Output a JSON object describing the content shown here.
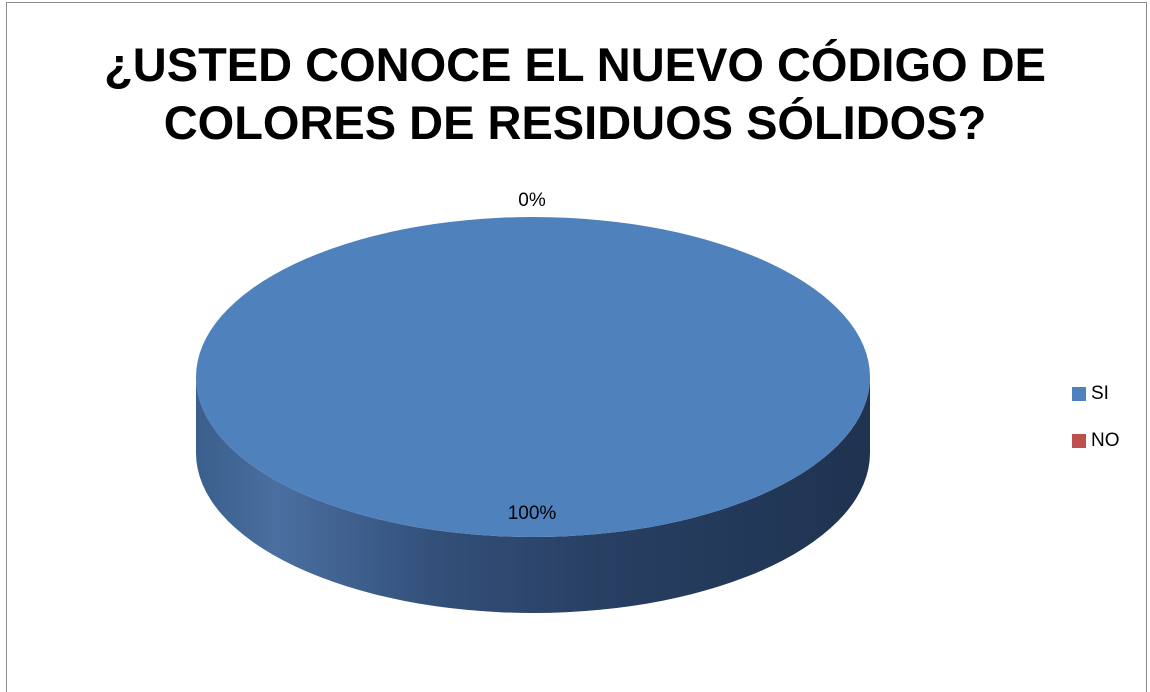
{
  "chart_data": {
    "type": "pie",
    "title": "¿USTED  CONOCE EL NUEVO CÓDIGO DE COLORES DE RESIDUOS SÓLIDOS?",
    "title_lines": [
      "¿USTED  CONOCE EL NUEVO CÓDIGO DE",
      "COLORES DE RESIDUOS SÓLIDOS?"
    ],
    "categories": [
      "SI",
      "NO"
    ],
    "values": [
      100,
      0
    ],
    "data_labels": [
      "100%",
      "0%"
    ],
    "colors": [
      "#4F81BD",
      "#C0504D"
    ],
    "style": "3d",
    "legend_position": "right"
  }
}
